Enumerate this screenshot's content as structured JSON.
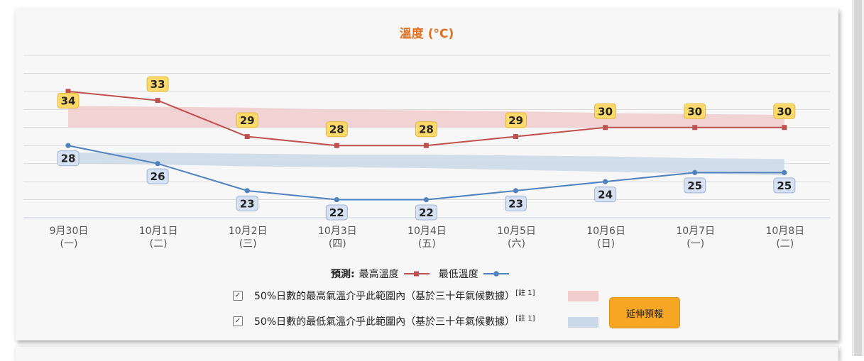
{
  "chart_data": {
    "type": "line",
    "title": "溫度 (°C)",
    "categories": [
      [
        "9月30日",
        "(一)"
      ],
      [
        "10月1日",
        "(二)"
      ],
      [
        "10月2日",
        "(三)"
      ],
      [
        "10月3日",
        "(四)"
      ],
      [
        "10月4日",
        "(五)"
      ],
      [
        "10月5日",
        "(六)"
      ],
      [
        "10月6日",
        "(日)"
      ],
      [
        "10月7日",
        "(一)"
      ],
      [
        "10月8日",
        "(二)"
      ]
    ],
    "series": [
      {
        "name": "最高溫度",
        "values": [
          34,
          33,
          29,
          28,
          28,
          29,
          30,
          30,
          30
        ],
        "color": "#c0504d",
        "marker": "square"
      },
      {
        "name": "最低溫度",
        "values": [
          28,
          26,
          23,
          22,
          22,
          23,
          24,
          25,
          25
        ],
        "color": "#4f81bd",
        "marker": "circle"
      }
    ],
    "bands": [
      {
        "lower": [
          30.0,
          30.0,
          30.0,
          30.0,
          30.0,
          30.0,
          30.0,
          30.0,
          30.0
        ],
        "upper": [
          32.4,
          32.3,
          32.2,
          32.0,
          31.9,
          31.8,
          31.6,
          31.5,
          31.4
        ],
        "color": "#f0cccc"
      },
      {
        "lower": [
          26.0,
          25.9,
          25.7,
          25.6,
          25.5,
          25.3,
          25.1,
          24.9,
          24.7
        ],
        "upper": [
          27.2,
          27.2,
          27.1,
          27.0,
          27.0,
          26.9,
          26.8,
          26.6,
          26.5
        ],
        "color": "#cbd8e8"
      }
    ],
    "ylim": [
      20,
      38
    ],
    "grid": true,
    "label_color": "#fbd96b",
    "low_label_color": "#d6e2f3"
  },
  "legend": {
    "prefix": "預測:",
    "max_label": "最高溫度",
    "min_label": "最低溫度"
  },
  "band_legend": [
    {
      "text": "50%日數的最高氣溫介乎此範圍內（基於三十年氣候數據）",
      "note": "[註 1]",
      "checked": true,
      "color": "#f0cccc"
    },
    {
      "text": "50%日數的最低氣溫介乎此範圍內（基於三十年氣候數據）",
      "note": "[註 1]",
      "checked": true,
      "color": "#cbd8e8"
    }
  ],
  "buttons": {
    "extend": "延伸預報"
  }
}
